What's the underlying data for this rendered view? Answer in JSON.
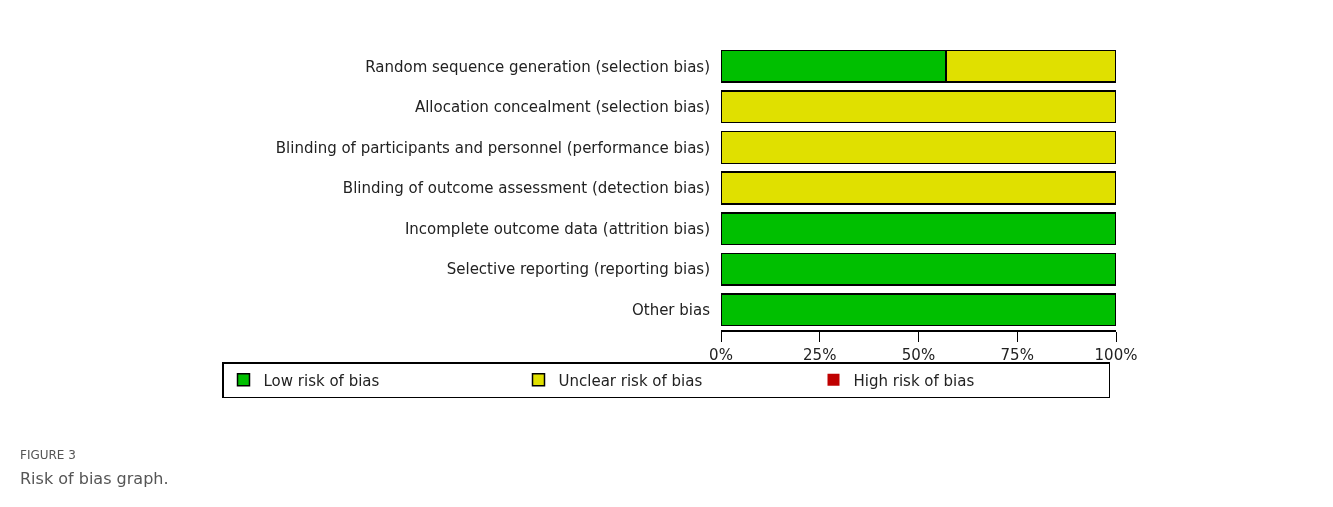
{
  "chart_data": {
    "type": "bar",
    "orientation": "horizontal",
    "stacked": true,
    "categories": [
      "Random sequence generation (selection bias)",
      "Allocation concealment (selection bias)",
      "Blinding of participants and personnel (performance bias)",
      "Blinding of outcome assessment (detection bias)",
      "Incomplete outcome data (attrition bias)",
      "Selective reporting (reporting bias)",
      "Other bias"
    ],
    "series": [
      {
        "name": "Low risk of bias",
        "color": "#00bf00",
        "values": [
          57,
          0,
          0,
          0,
          100,
          100,
          100
        ]
      },
      {
        "name": "Unclear risk of bias",
        "color": "#e0e000",
        "values": [
          43,
          100,
          100,
          100,
          0,
          0,
          0
        ]
      },
      {
        "name": "High risk of bias",
        "color": "#bf0000",
        "values": [
          0,
          0,
          0,
          0,
          0,
          0,
          0
        ]
      }
    ],
    "xlim": [
      0,
      100
    ],
    "xticks": [
      {
        "value": 0,
        "label": "0%"
      },
      {
        "value": 25,
        "label": "25%"
      },
      {
        "value": 50,
        "label": "50%"
      },
      {
        "value": 75,
        "label": "75%"
      },
      {
        "value": 100,
        "label": "100%"
      }
    ],
    "legend": "bottom",
    "annotations": [
      "FIGURE 3",
      "Risk of bias graph."
    ]
  }
}
